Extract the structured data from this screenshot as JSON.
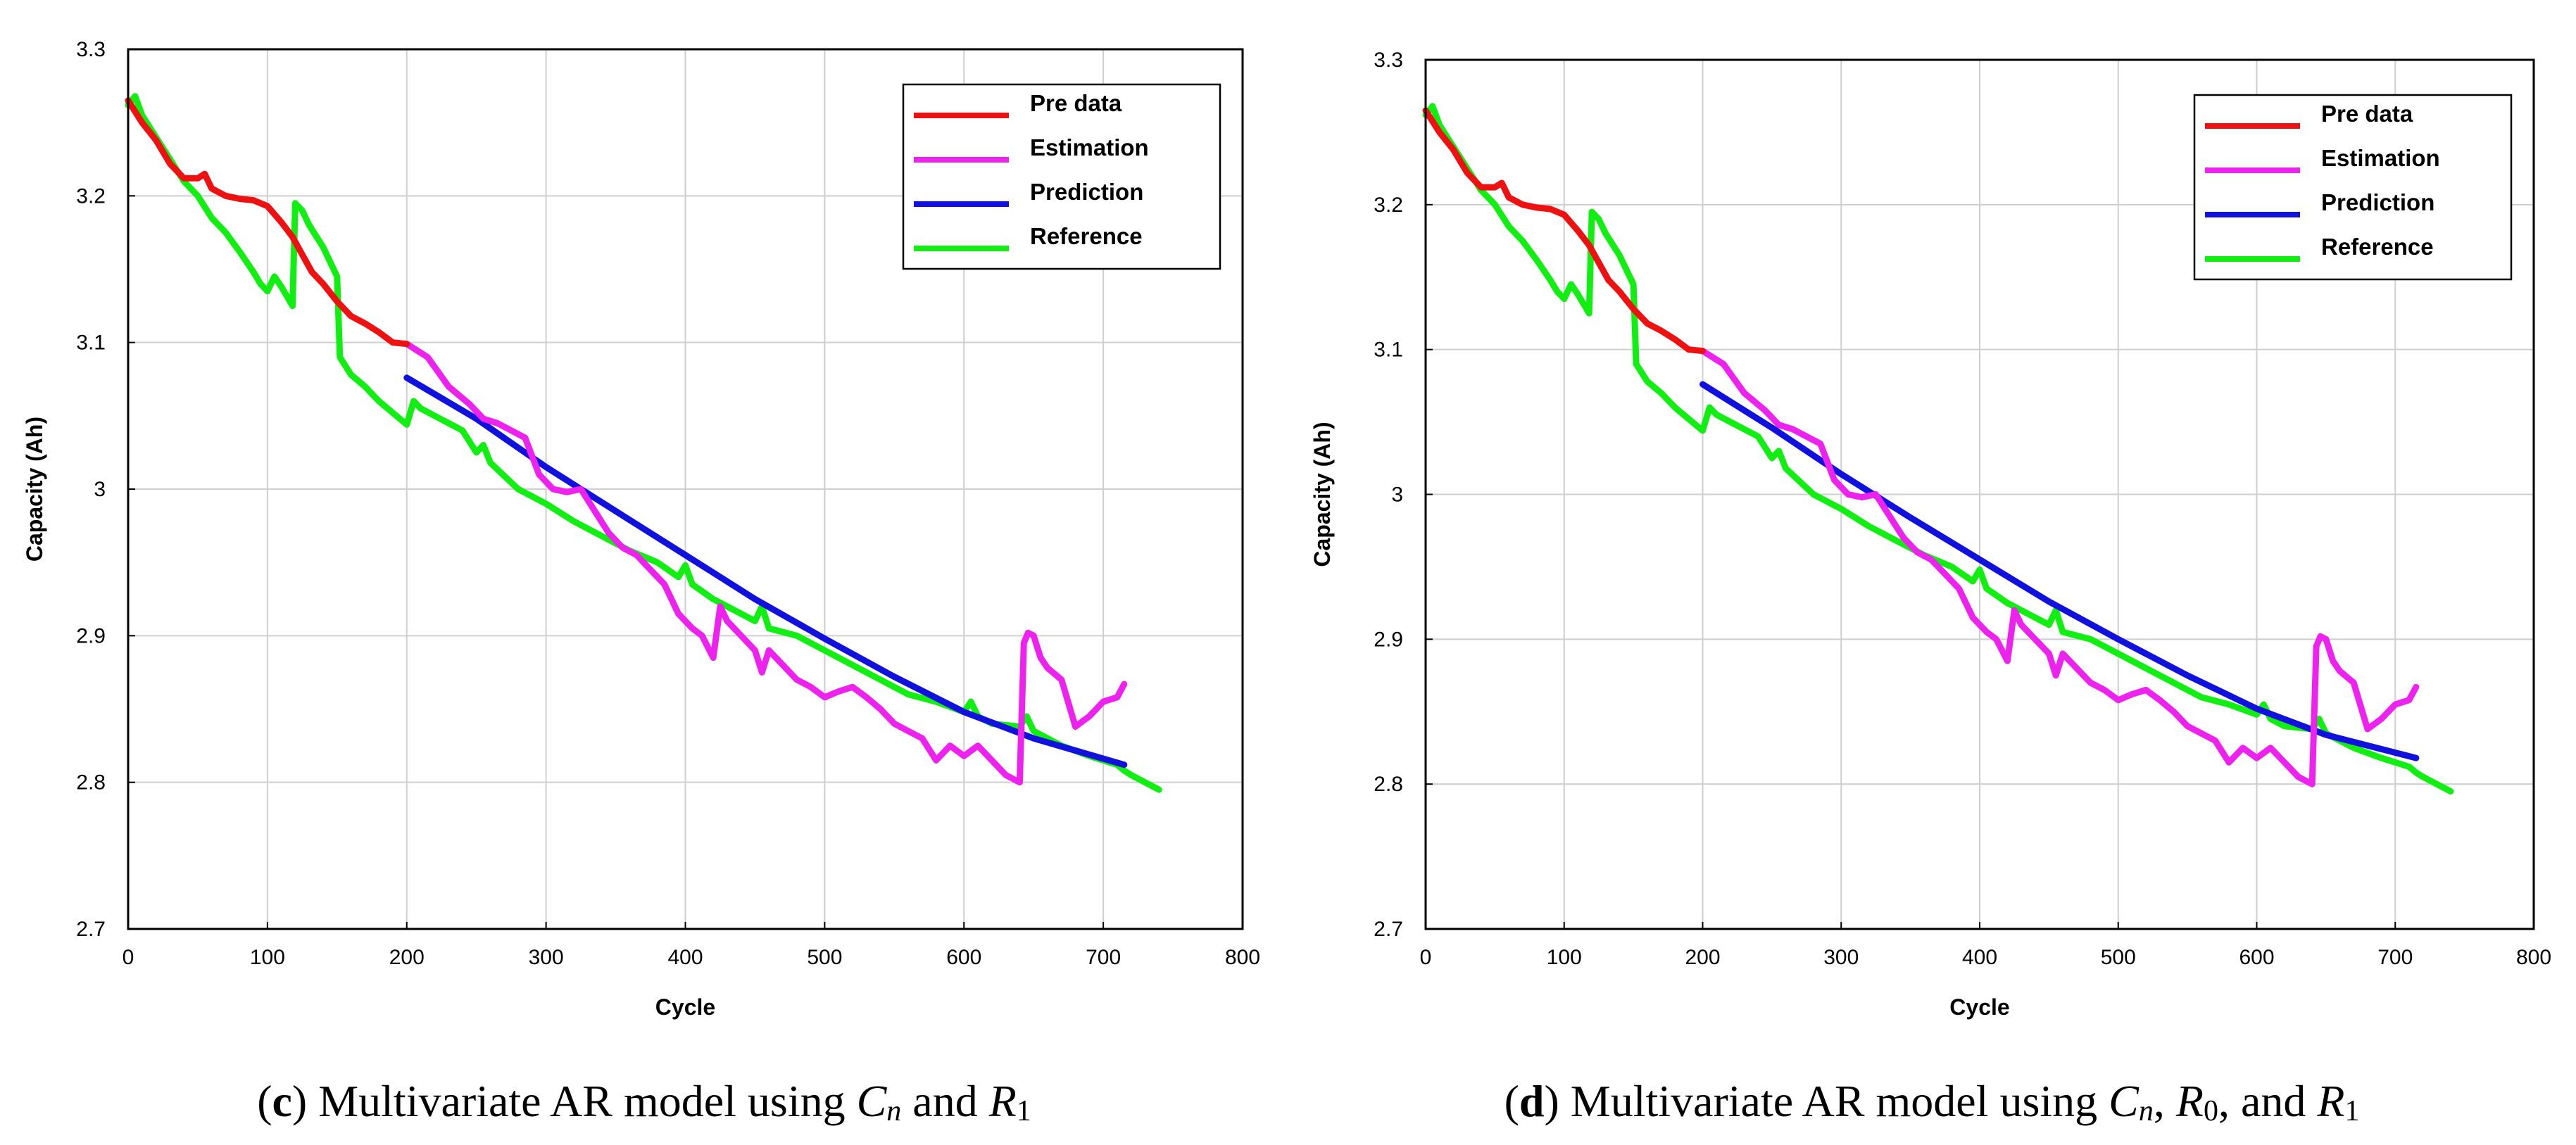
{
  "colors": {
    "pre_data": "#ee1111",
    "estimation": "#ee22ee",
    "prediction": "#1111dd",
    "reference": "#11ee11",
    "grid": "#cfcfcf",
    "axis": "#000000"
  },
  "chart_data": [
    {
      "id": "c",
      "type": "line",
      "caption": {
        "letter": "c",
        "text": "Multivariate AR model using ",
        "var1": "C",
        "var1_sub": "n",
        "and": " and ",
        "var2": "R",
        "var2_sub": "1"
      },
      "xlabel": "Cycle",
      "ylabel": "Capacity (Ah)",
      "xlim": [
        0,
        800
      ],
      "ylim": [
        2.7,
        3.3
      ],
      "xticks": [
        "0",
        "100",
        "200",
        "300",
        "400",
        "500",
        "600",
        "700",
        "800"
      ],
      "yticks": [
        "2.7",
        "2.8",
        "2.9",
        "3",
        "3.1",
        "3.2",
        "3.3"
      ],
      "grid": true,
      "legend": {
        "position": "top-right",
        "entries": [
          "Pre data",
          "Estimation",
          "Prediction",
          "Reference"
        ]
      },
      "series": [
        {
          "name": "Pre data",
          "color_key": "pre_data",
          "x": [
            0,
            10,
            20,
            30,
            40,
            50,
            55,
            60,
            70,
            80,
            90,
            100,
            110,
            118,
            125,
            132,
            140,
            150,
            160,
            170,
            180,
            190,
            200
          ],
          "y": [
            3.265,
            3.25,
            3.238,
            3.222,
            3.212,
            3.212,
            3.215,
            3.205,
            3.2,
            3.198,
            3.197,
            3.193,
            3.182,
            3.172,
            3.16,
            3.148,
            3.14,
            3.128,
            3.118,
            3.113,
            3.107,
            3.1,
            3.099
          ]
        },
        {
          "name": "Estimation",
          "color_key": "estimation",
          "x": [
            200,
            215,
            230,
            245,
            255,
            265,
            275,
            285,
            295,
            305,
            315,
            325,
            335,
            345,
            355,
            365,
            375,
            385,
            395,
            405,
            412,
            420,
            425,
            430,
            440,
            450,
            455,
            460,
            470,
            480,
            490,
            500,
            510,
            520,
            530,
            540,
            550,
            560,
            570,
            580,
            590,
            600,
            610,
            620,
            630,
            640,
            643,
            646,
            650,
            655,
            660,
            670,
            680,
            690,
            700,
            710,
            715
          ],
          "y": [
            3.099,
            3.09,
            3.07,
            3.058,
            3.048,
            3.045,
            3.04,
            3.035,
            3.01,
            3.0,
            2.998,
            3.0,
            2.985,
            2.97,
            2.96,
            2.955,
            2.945,
            2.935,
            2.915,
            2.905,
            2.9,
            2.885,
            2.92,
            2.91,
            2.9,
            2.89,
            2.875,
            2.89,
            2.88,
            2.87,
            2.865,
            2.858,
            2.862,
            2.865,
            2.858,
            2.85,
            2.84,
            2.835,
            2.83,
            2.815,
            2.825,
            2.818,
            2.825,
            2.815,
            2.805,
            2.8,
            2.895,
            2.902,
            2.9,
            2.885,
            2.878,
            2.87,
            2.838,
            2.845,
            2.855,
            2.858,
            2.867
          ]
        },
        {
          "name": "Prediction",
          "color_key": "prediction",
          "x": [
            200,
            250,
            300,
            350,
            400,
            450,
            500,
            550,
            600,
            650,
            715
          ],
          "y": [
            3.076,
            3.048,
            3.015,
            2.985,
            2.955,
            2.925,
            2.898,
            2.872,
            2.848,
            2.83,
            2.812
          ]
        },
        {
          "name": "Reference",
          "color_key": "reference",
          "x": [
            0,
            5,
            10,
            20,
            30,
            40,
            50,
            60,
            70,
            80,
            90,
            95,
            100,
            105,
            110,
            118,
            120,
            125,
            130,
            140,
            145,
            150,
            152,
            160,
            170,
            180,
            190,
            200,
            205,
            210,
            220,
            240,
            250,
            255,
            260,
            280,
            300,
            320,
            340,
            360,
            380,
            395,
            400,
            405,
            420,
            440,
            450,
            455,
            460,
            480,
            500,
            520,
            540,
            560,
            580,
            600,
            605,
            610,
            620,
            640,
            645,
            650,
            670,
            690,
            710,
            715,
            720,
            730,
            740
          ],
          "y": [
            3.262,
            3.268,
            3.255,
            3.24,
            3.225,
            3.21,
            3.2,
            3.185,
            3.175,
            3.162,
            3.148,
            3.14,
            3.135,
            3.145,
            3.138,
            3.125,
            3.195,
            3.19,
            3.18,
            3.165,
            3.155,
            3.145,
            3.09,
            3.078,
            3.07,
            3.06,
            3.052,
            3.044,
            3.06,
            3.055,
            3.05,
            3.04,
            3.025,
            3.03,
            3.018,
            3.0,
            2.99,
            2.978,
            2.968,
            2.958,
            2.95,
            2.94,
            2.948,
            2.935,
            2.925,
            2.915,
            2.91,
            2.92,
            2.905,
            2.9,
            2.89,
            2.88,
            2.87,
            2.86,
            2.855,
            2.848,
            2.855,
            2.845,
            2.84,
            2.838,
            2.845,
            2.835,
            2.825,
            2.818,
            2.812,
            2.808,
            2.805,
            2.8,
            2.795
          ]
        }
      ]
    },
    {
      "id": "d",
      "type": "line",
      "caption": {
        "letter": "d",
        "text": "Multivariate AR model using ",
        "var1": "C",
        "var1_sub": "n",
        "mid": ", ",
        "var2": "R",
        "var2_sub": "0",
        "and": ", and ",
        "var3": "R",
        "var3_sub": "1"
      },
      "xlabel": "Cycle",
      "ylabel": "Capacity (Ah)",
      "xlim": [
        0,
        800
      ],
      "ylim": [
        2.7,
        3.3
      ],
      "xticks": [
        "0",
        "100",
        "200",
        "300",
        "400",
        "500",
        "600",
        "700",
        "800"
      ],
      "yticks": [
        "2.7",
        "2.8",
        "2.9",
        "3",
        "3.1",
        "3.2",
        "3.3"
      ],
      "grid": true,
      "legend": {
        "position": "top-right",
        "entries": [
          "Pre data",
          "Estimation",
          "Prediction",
          "Reference"
        ]
      },
      "series": [
        {
          "name": "Pre data",
          "color_key": "pre_data",
          "x": [
            0,
            10,
            20,
            30,
            40,
            50,
            55,
            60,
            70,
            80,
            90,
            100,
            110,
            118,
            125,
            132,
            140,
            150,
            160,
            170,
            180,
            190,
            200
          ],
          "y": [
            3.265,
            3.25,
            3.238,
            3.222,
            3.212,
            3.212,
            3.215,
            3.205,
            3.2,
            3.198,
            3.197,
            3.193,
            3.182,
            3.172,
            3.16,
            3.148,
            3.14,
            3.128,
            3.118,
            3.113,
            3.107,
            3.1,
            3.099
          ]
        },
        {
          "name": "Estimation",
          "color_key": "estimation",
          "x": [
            200,
            215,
            230,
            245,
            255,
            265,
            275,
            285,
            295,
            305,
            315,
            325,
            335,
            345,
            355,
            365,
            375,
            385,
            395,
            405,
            412,
            420,
            425,
            430,
            440,
            450,
            455,
            460,
            470,
            480,
            490,
            500,
            510,
            520,
            530,
            540,
            550,
            560,
            570,
            580,
            590,
            600,
            610,
            620,
            630,
            640,
            643,
            646,
            650,
            655,
            660,
            670,
            680,
            690,
            700,
            710,
            715
          ],
          "y": [
            3.099,
            3.09,
            3.07,
            3.058,
            3.048,
            3.045,
            3.04,
            3.035,
            3.01,
            3.0,
            2.998,
            3.0,
            2.985,
            2.97,
            2.96,
            2.955,
            2.945,
            2.935,
            2.915,
            2.905,
            2.9,
            2.885,
            2.92,
            2.91,
            2.9,
            2.89,
            2.875,
            2.89,
            2.88,
            2.87,
            2.865,
            2.858,
            2.862,
            2.865,
            2.858,
            2.85,
            2.84,
            2.835,
            2.83,
            2.815,
            2.825,
            2.818,
            2.825,
            2.815,
            2.805,
            2.8,
            2.895,
            2.902,
            2.9,
            2.885,
            2.878,
            2.87,
            2.838,
            2.845,
            2.855,
            2.858,
            2.867
          ]
        },
        {
          "name": "Prediction",
          "color_key": "prediction",
          "x": [
            200,
            250,
            300,
            350,
            400,
            450,
            500,
            550,
            600,
            650,
            715
          ],
          "y": [
            3.076,
            3.046,
            3.014,
            2.984,
            2.955,
            2.926,
            2.9,
            2.875,
            2.852,
            2.834,
            2.818
          ]
        },
        {
          "name": "Reference",
          "color_key": "reference",
          "x": [
            0,
            5,
            10,
            20,
            30,
            40,
            50,
            60,
            70,
            80,
            90,
            95,
            100,
            105,
            110,
            118,
            120,
            125,
            130,
            140,
            145,
            150,
            152,
            160,
            170,
            180,
            190,
            200,
            205,
            210,
            220,
            240,
            250,
            255,
            260,
            280,
            300,
            320,
            340,
            360,
            380,
            395,
            400,
            405,
            420,
            440,
            450,
            455,
            460,
            480,
            500,
            520,
            540,
            560,
            580,
            600,
            605,
            610,
            620,
            640,
            645,
            650,
            670,
            690,
            710,
            715,
            720,
            730,
            740
          ],
          "y": [
            3.262,
            3.268,
            3.255,
            3.24,
            3.225,
            3.21,
            3.2,
            3.185,
            3.175,
            3.162,
            3.148,
            3.14,
            3.135,
            3.145,
            3.138,
            3.125,
            3.195,
            3.19,
            3.18,
            3.165,
            3.155,
            3.145,
            3.09,
            3.078,
            3.07,
            3.06,
            3.052,
            3.044,
            3.06,
            3.055,
            3.05,
            3.04,
            3.025,
            3.03,
            3.018,
            3.0,
            2.99,
            2.978,
            2.968,
            2.958,
            2.95,
            2.94,
            2.948,
            2.935,
            2.925,
            2.915,
            2.91,
            2.92,
            2.905,
            2.9,
            2.89,
            2.88,
            2.87,
            2.86,
            2.855,
            2.848,
            2.855,
            2.845,
            2.84,
            2.838,
            2.845,
            2.835,
            2.825,
            2.818,
            2.812,
            2.808,
            2.805,
            2.8,
            2.795
          ]
        }
      ]
    }
  ]
}
